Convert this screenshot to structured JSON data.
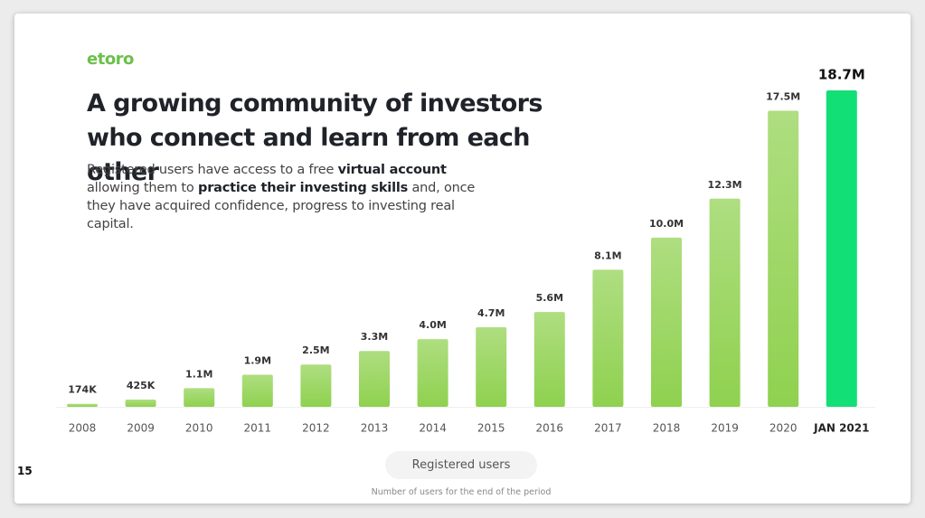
{
  "logo": "etoro",
  "title": "A growing community of investors who connect and learn from each other",
  "description": [
    {
      "text": "Registered users have access to a free ",
      "bold": false
    },
    {
      "text": "virtual account",
      "bold": true
    },
    {
      "text": " allowing them to ",
      "bold": false
    },
    {
      "text": "practice their investing skills",
      "bold": true
    },
    {
      "text": " and, once they have acquired confidence, progress to investing real capital.",
      "bold": false
    }
  ],
  "page_number": "15",
  "chart_data": {
    "type": "bar",
    "categories": [
      "2008",
      "2009",
      "2010",
      "2011",
      "2012",
      "2013",
      "2014",
      "2015",
      "2016",
      "2017",
      "2018",
      "2019",
      "2020",
      "JAN 2021"
    ],
    "series": [
      {
        "name": "Registered users",
        "values": [
          174000,
          425000,
          1100000,
          1900000,
          2500000,
          3300000,
          4000000,
          4700000,
          5600000,
          8100000,
          10000000,
          12300000,
          17500000,
          18700000
        ],
        "value_labels": [
          "174K",
          "425K",
          "1.1M",
          "1.9M",
          "2.5M",
          "3.3M",
          "4.0M",
          "4.7M",
          "5.6M",
          "8.1M",
          "10.0M",
          "12.3M",
          "17.5M",
          "18.7M"
        ],
        "colors": [
          "#8fd14f",
          "#8fd14f",
          "#8fd14f",
          "#8fd14f",
          "#8fd14f",
          "#8fd14f",
          "#8fd14f",
          "#8fd14f",
          "#8fd14f",
          "#8fd14f",
          "#8fd14f",
          "#8fd14f",
          "#8fd14f",
          "#12df76"
        ]
      }
    ],
    "note": "Number of users for the end of the period"
  }
}
